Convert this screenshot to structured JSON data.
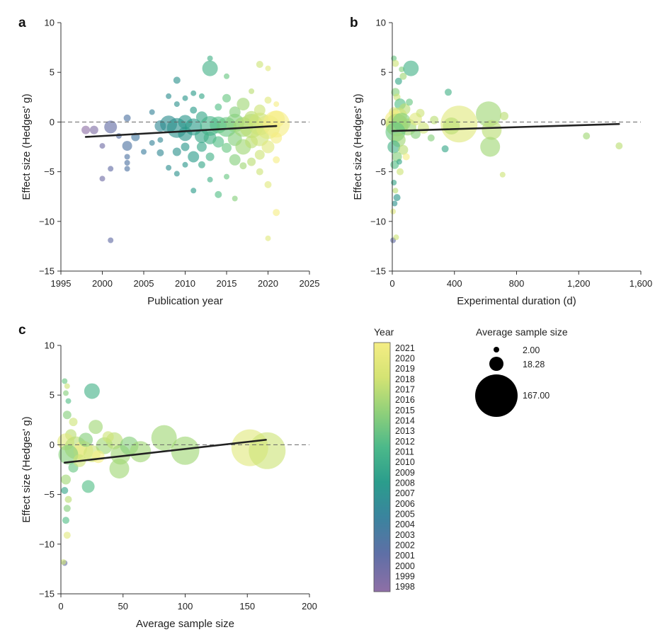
{
  "colors": {
    "viridis": [
      "#8e6fa6",
      "#5d6aa3",
      "#3f7ca0",
      "#2b8b8e",
      "#2a9c89",
      "#58c385",
      "#b4dc70",
      "#f5ed84"
    ],
    "trend": "#222222",
    "reference": "#666666",
    "axis": "#333333"
  },
  "chart_data": [
    {
      "panel": "a",
      "type": "scatter",
      "xlabel": "Publication year",
      "ylabel": "Effect size (Hedges' g)",
      "xlim": [
        1995,
        2025
      ],
      "ylim": [
        -15,
        10
      ],
      "xticks": [
        1995,
        2000,
        2005,
        2010,
        2015,
        2020,
        2025
      ],
      "xtick_labels": [
        "1995",
        "2000",
        "2005",
        "2010",
        "2015",
        "2020",
        "2025"
      ],
      "yticks": [
        10,
        5,
        0,
        -5,
        -10,
        -15
      ],
      "ytick_labels": [
        "10",
        "5",
        "0",
        "−5",
        "−10",
        "−15"
      ],
      "reference_y": 0,
      "trend": [
        [
          1998,
          -1.5
        ],
        [
          2021,
          -0.4
        ]
      ],
      "points": [
        [
          1998,
          -0.8,
          6,
          1998
        ],
        [
          1999,
          -0.8,
          6,
          1999
        ],
        [
          2000,
          -5.7,
          4,
          2000
        ],
        [
          2000,
          -2.4,
          4,
          2000
        ],
        [
          2001,
          -0.5,
          9,
          2001
        ],
        [
          2001,
          -11.9,
          4,
          2001
        ],
        [
          2001,
          -4.7,
          4,
          2001
        ],
        [
          2002,
          -1.4,
          4,
          2002
        ],
        [
          2003,
          0.4,
          5,
          2003
        ],
        [
          2003,
          -2.4,
          7,
          2003
        ],
        [
          2003,
          -3.5,
          4,
          2003
        ],
        [
          2003,
          -4.1,
          4,
          2003
        ],
        [
          2003,
          -4.7,
          4,
          2003
        ],
        [
          2004,
          -1.5,
          6,
          2004
        ],
        [
          2005,
          -3.0,
          4,
          2005
        ],
        [
          2006,
          1.0,
          4,
          2006
        ],
        [
          2006,
          -2.1,
          4,
          2006
        ],
        [
          2007,
          -0.4,
          8,
          2007
        ],
        [
          2007,
          -3.1,
          5,
          2007
        ],
        [
          2007,
          -1.8,
          4,
          2007
        ],
        [
          2008,
          -0.2,
          12,
          2008
        ],
        [
          2008,
          2.6,
          4,
          2008
        ],
        [
          2008,
          -4.6,
          4,
          2008
        ],
        [
          2009,
          4.2,
          5,
          2009
        ],
        [
          2009,
          1.8,
          4,
          2009
        ],
        [
          2009,
          -0.6,
          14,
          2009
        ],
        [
          2009,
          -3.0,
          6,
          2009
        ],
        [
          2009,
          -5.2,
          4,
          2009
        ],
        [
          2010,
          0.0,
          10,
          2010
        ],
        [
          2010,
          -1.2,
          10,
          2010
        ],
        [
          2010,
          2.4,
          4,
          2010
        ],
        [
          2010,
          -2.5,
          6,
          2010
        ],
        [
          2010,
          -4.3,
          4,
          2010
        ],
        [
          2011,
          2.9,
          4,
          2011
        ],
        [
          2011,
          -0.5,
          12,
          2011
        ],
        [
          2011,
          -3.5,
          8,
          2011
        ],
        [
          2011,
          1.2,
          5,
          2011
        ],
        [
          2011,
          -6.9,
          4,
          2011
        ],
        [
          2012,
          0.5,
          8,
          2012
        ],
        [
          2012,
          -1.4,
          10,
          2012
        ],
        [
          2012,
          -2.5,
          7,
          2012
        ],
        [
          2012,
          -4.3,
          5,
          2012
        ],
        [
          2012,
          2.6,
          4,
          2012
        ],
        [
          2013,
          6.4,
          4,
          2013
        ],
        [
          2013,
          5.4,
          11,
          2013
        ],
        [
          2013,
          -0.4,
          14,
          2013
        ],
        [
          2013,
          -1.6,
          9,
          2013
        ],
        [
          2013,
          -3.5,
          6,
          2013
        ],
        [
          2013,
          -5.8,
          4,
          2013
        ],
        [
          2014,
          1.5,
          5,
          2014
        ],
        [
          2014,
          -0.3,
          12,
          2014
        ],
        [
          2014,
          -2.0,
          8,
          2014
        ],
        [
          2014,
          -7.3,
          5,
          2014
        ],
        [
          2015,
          4.6,
          4,
          2015
        ],
        [
          2015,
          2.4,
          6,
          2015
        ],
        [
          2015,
          -0.5,
          14,
          2015
        ],
        [
          2015,
          -2.6,
          7,
          2015
        ],
        [
          2015,
          -5.5,
          4,
          2015
        ],
        [
          2016,
          1.0,
          8,
          2016
        ],
        [
          2016,
          -0.1,
          13,
          2016
        ],
        [
          2016,
          -1.7,
          10,
          2016
        ],
        [
          2016,
          -3.8,
          8,
          2016
        ],
        [
          2016,
          -7.7,
          4,
          2016
        ],
        [
          2017,
          1.8,
          9,
          2017
        ],
        [
          2017,
          -0.5,
          14,
          2017
        ],
        [
          2017,
          -2.5,
          11,
          2017
        ],
        [
          2017,
          -4.4,
          5,
          2017
        ],
        [
          2018,
          3.1,
          4,
          2018
        ],
        [
          2018,
          0.4,
          10,
          2018
        ],
        [
          2018,
          -0.4,
          17,
          2018
        ],
        [
          2018,
          -2.0,
          9,
          2018
        ],
        [
          2018,
          -4.0,
          6,
          2018
        ],
        [
          2019,
          5.8,
          5,
          2019
        ],
        [
          2019,
          1.2,
          8,
          2019
        ],
        [
          2019,
          -0.2,
          16,
          2019
        ],
        [
          2019,
          -1.5,
          13,
          2019
        ],
        [
          2019,
          -3.3,
          7,
          2019
        ],
        [
          2019,
          -5.0,
          5,
          2019
        ],
        [
          2020,
          5.4,
          4,
          2020
        ],
        [
          2020,
          2.2,
          5,
          2020
        ],
        [
          2020,
          -0.5,
          17,
          2020
        ],
        [
          2020,
          -2.5,
          9,
          2020
        ],
        [
          2020,
          -6.3,
          5,
          2020
        ],
        [
          2020,
          -11.7,
          4,
          2020
        ],
        [
          2021,
          0.3,
          12,
          2021
        ],
        [
          2021,
          -0.2,
          19,
          2021
        ],
        [
          2021,
          -1.6,
          8,
          2021
        ],
        [
          2021,
          -3.8,
          5,
          2021
        ],
        [
          2021,
          -9.1,
          5,
          2021
        ],
        [
          2021,
          1.8,
          4,
          2021
        ]
      ]
    },
    {
      "panel": "b",
      "type": "scatter",
      "xlabel": "Experimental duration (d)",
      "ylabel": "Effect size (Hedges' g)",
      "xlim": [
        0,
        1600
      ],
      "ylim": [
        -15,
        10
      ],
      "xticks": [
        0,
        400,
        800,
        1200,
        1600
      ],
      "xtick_labels": [
        "0",
        "400",
        "800",
        "1,200",
        "1,600"
      ],
      "yticks": [
        10,
        5,
        0,
        -5,
        -10,
        -15
      ],
      "ytick_labels": [
        "10",
        "5",
        "0",
        "−5",
        "−10",
        "−15"
      ],
      "reference_y": 0,
      "trend": [
        [
          0,
          -0.9
        ],
        [
          1460,
          -0.2
        ]
      ],
      "points": [
        [
          10,
          6.4,
          4,
          2015
        ],
        [
          20,
          5.9,
          5,
          2019
        ],
        [
          60,
          5.3,
          4,
          2016
        ],
        [
          120,
          5.4,
          11,
          2013
        ],
        [
          70,
          4.6,
          5,
          2017
        ],
        [
          40,
          4.1,
          5,
          2012
        ],
        [
          20,
          3.0,
          6,
          2016
        ],
        [
          30,
          2.5,
          5,
          2019
        ],
        [
          50,
          1.8,
          8,
          2014
        ],
        [
          80,
          1.3,
          8,
          2018
        ],
        [
          10,
          1.0,
          7,
          2020
        ],
        [
          40,
          0.6,
          12,
          2019
        ],
        [
          15,
          0.2,
          14,
          2021
        ],
        [
          30,
          -0.3,
          16,
          2018
        ],
        [
          60,
          0.0,
          13,
          2016
        ],
        [
          100,
          -0.5,
          12,
          2017
        ],
        [
          150,
          0.3,
          9,
          2020
        ],
        [
          200,
          -0.6,
          8,
          2019
        ],
        [
          20,
          -1.0,
          14,
          2015
        ],
        [
          40,
          -1.8,
          10,
          2017
        ],
        [
          10,
          -2.5,
          9,
          2013
        ],
        [
          70,
          -2.8,
          7,
          2018
        ],
        [
          30,
          -3.5,
          7,
          2016
        ],
        [
          15,
          -4.3,
          6,
          2014
        ],
        [
          50,
          -5.0,
          5,
          2019
        ],
        [
          10,
          -6.1,
          4,
          2012
        ],
        [
          20,
          -6.9,
          4,
          2018
        ],
        [
          30,
          -7.6,
          5,
          2010
        ],
        [
          5,
          -9.0,
          4,
          2020
        ],
        [
          5,
          -11.9,
          4,
          2001
        ],
        [
          25,
          -11.6,
          4,
          2019
        ],
        [
          15,
          -8.2,
          4,
          2009
        ],
        [
          45,
          -4.0,
          4,
          2012
        ],
        [
          250,
          -1.6,
          5,
          2016
        ],
        [
          340,
          -2.7,
          5,
          2012
        ],
        [
          360,
          3.0,
          5,
          2013
        ],
        [
          430,
          -0.2,
          26,
          2020
        ],
        [
          380,
          -0.4,
          12,
          2018
        ],
        [
          620,
          0.8,
          18,
          2017
        ],
        [
          640,
          -0.8,
          14,
          2018
        ],
        [
          630,
          -2.5,
          14,
          2017
        ],
        [
          720,
          0.6,
          6,
          2018
        ],
        [
          710,
          -5.3,
          4,
          2019
        ],
        [
          1250,
          -1.4,
          5,
          2017
        ],
        [
          1460,
          -2.4,
          5,
          2018
        ],
        [
          150,
          -1.2,
          7,
          2016
        ],
        [
          180,
          0.9,
          6,
          2019
        ],
        [
          270,
          0.2,
          6,
          2018
        ],
        [
          110,
          2.0,
          5,
          2015
        ],
        [
          90,
          -3.5,
          5,
          2021
        ]
      ]
    },
    {
      "panel": "c",
      "type": "scatter",
      "xlabel": "Average sample size",
      "ylabel": "Effect size (Hedges' g)",
      "xlim": [
        0,
        200
      ],
      "ylim": [
        -15,
        10
      ],
      "xticks": [
        0,
        50,
        100,
        150,
        200
      ],
      "xtick_labels": [
        "0",
        "50",
        "100",
        "150",
        "200"
      ],
      "yticks": [
        10,
        5,
        0,
        -5,
        -10,
        -15
      ],
      "ytick_labels": [
        "10",
        "5",
        "0",
        "−5",
        "−10",
        "−15"
      ],
      "reference_y": 0,
      "trend": [
        [
          3,
          -1.8
        ],
        [
          165,
          0.5
        ]
      ],
      "points": [
        [
          3,
          6.4,
          4,
          2015
        ],
        [
          5,
          5.9,
          4,
          2019
        ],
        [
          4,
          5.2,
          4,
          2016
        ],
        [
          6,
          4.4,
          4,
          2014
        ],
        [
          25,
          5.4,
          11,
          2013
        ],
        [
          5,
          3.0,
          6,
          2016
        ],
        [
          10,
          2.3,
          6,
          2019
        ],
        [
          28,
          1.8,
          10,
          2017
        ],
        [
          8,
          1.0,
          8,
          2018
        ],
        [
          4,
          0.3,
          12,
          2020
        ],
        [
          12,
          -0.3,
          16,
          2018
        ],
        [
          18,
          -0.6,
          14,
          2021
        ],
        [
          6,
          -1.0,
          14,
          2016
        ],
        [
          25,
          -0.9,
          12,
          2019
        ],
        [
          35,
          -0.1,
          12,
          2017
        ],
        [
          43,
          0.4,
          12,
          2018
        ],
        [
          48,
          -1.0,
          14,
          2017
        ],
        [
          55,
          -0.1,
          13,
          2016
        ],
        [
          47,
          -2.4,
          14,
          2017
        ],
        [
          64,
          -0.7,
          15,
          2017
        ],
        [
          83,
          0.7,
          18,
          2017
        ],
        [
          100,
          -0.6,
          20,
          2017
        ],
        [
          152,
          -0.3,
          26,
          2020
        ],
        [
          166,
          -0.6,
          26,
          2019
        ],
        [
          22,
          -4.2,
          9,
          2014
        ],
        [
          4,
          -3.5,
          7,
          2017
        ],
        [
          3,
          -4.6,
          5,
          2012
        ],
        [
          6,
          -5.5,
          5,
          2018
        ],
        [
          5,
          -6.4,
          5,
          2016
        ],
        [
          4,
          -7.6,
          5,
          2014
        ],
        [
          5,
          -9.1,
          5,
          2020
        ],
        [
          3,
          -11.9,
          4,
          2001
        ],
        [
          2,
          -11.8,
          4,
          2019
        ],
        [
          10,
          -2.3,
          7,
          2015
        ],
        [
          15,
          -1.6,
          9,
          2019
        ],
        [
          30,
          -1.2,
          9,
          2021
        ],
        [
          38,
          0.8,
          8,
          2019
        ],
        [
          20,
          0.5,
          10,
          2016
        ]
      ]
    }
  ],
  "panels": [
    {
      "letter": "a"
    },
    {
      "letter": "b"
    },
    {
      "letter": "c"
    }
  ],
  "colorbar": {
    "title": "Year",
    "labels": [
      "2021",
      "2020",
      "2019",
      "2018",
      "2017",
      "2016",
      "2015",
      "2014",
      "2013",
      "2012",
      "2011",
      "2010",
      "2009",
      "2008",
      "2007",
      "2006",
      "2005",
      "2004",
      "2003",
      "2002",
      "2001",
      "2000",
      "1999",
      "1998"
    ],
    "min": 1998,
    "max": 2021
  },
  "size_legend": {
    "title": "Average sample size",
    "entries": [
      {
        "label": "2.00",
        "value": 2.0
      },
      {
        "label": "18.28",
        "value": 18.28
      },
      {
        "label": "167.00",
        "value": 167.0
      }
    ]
  }
}
